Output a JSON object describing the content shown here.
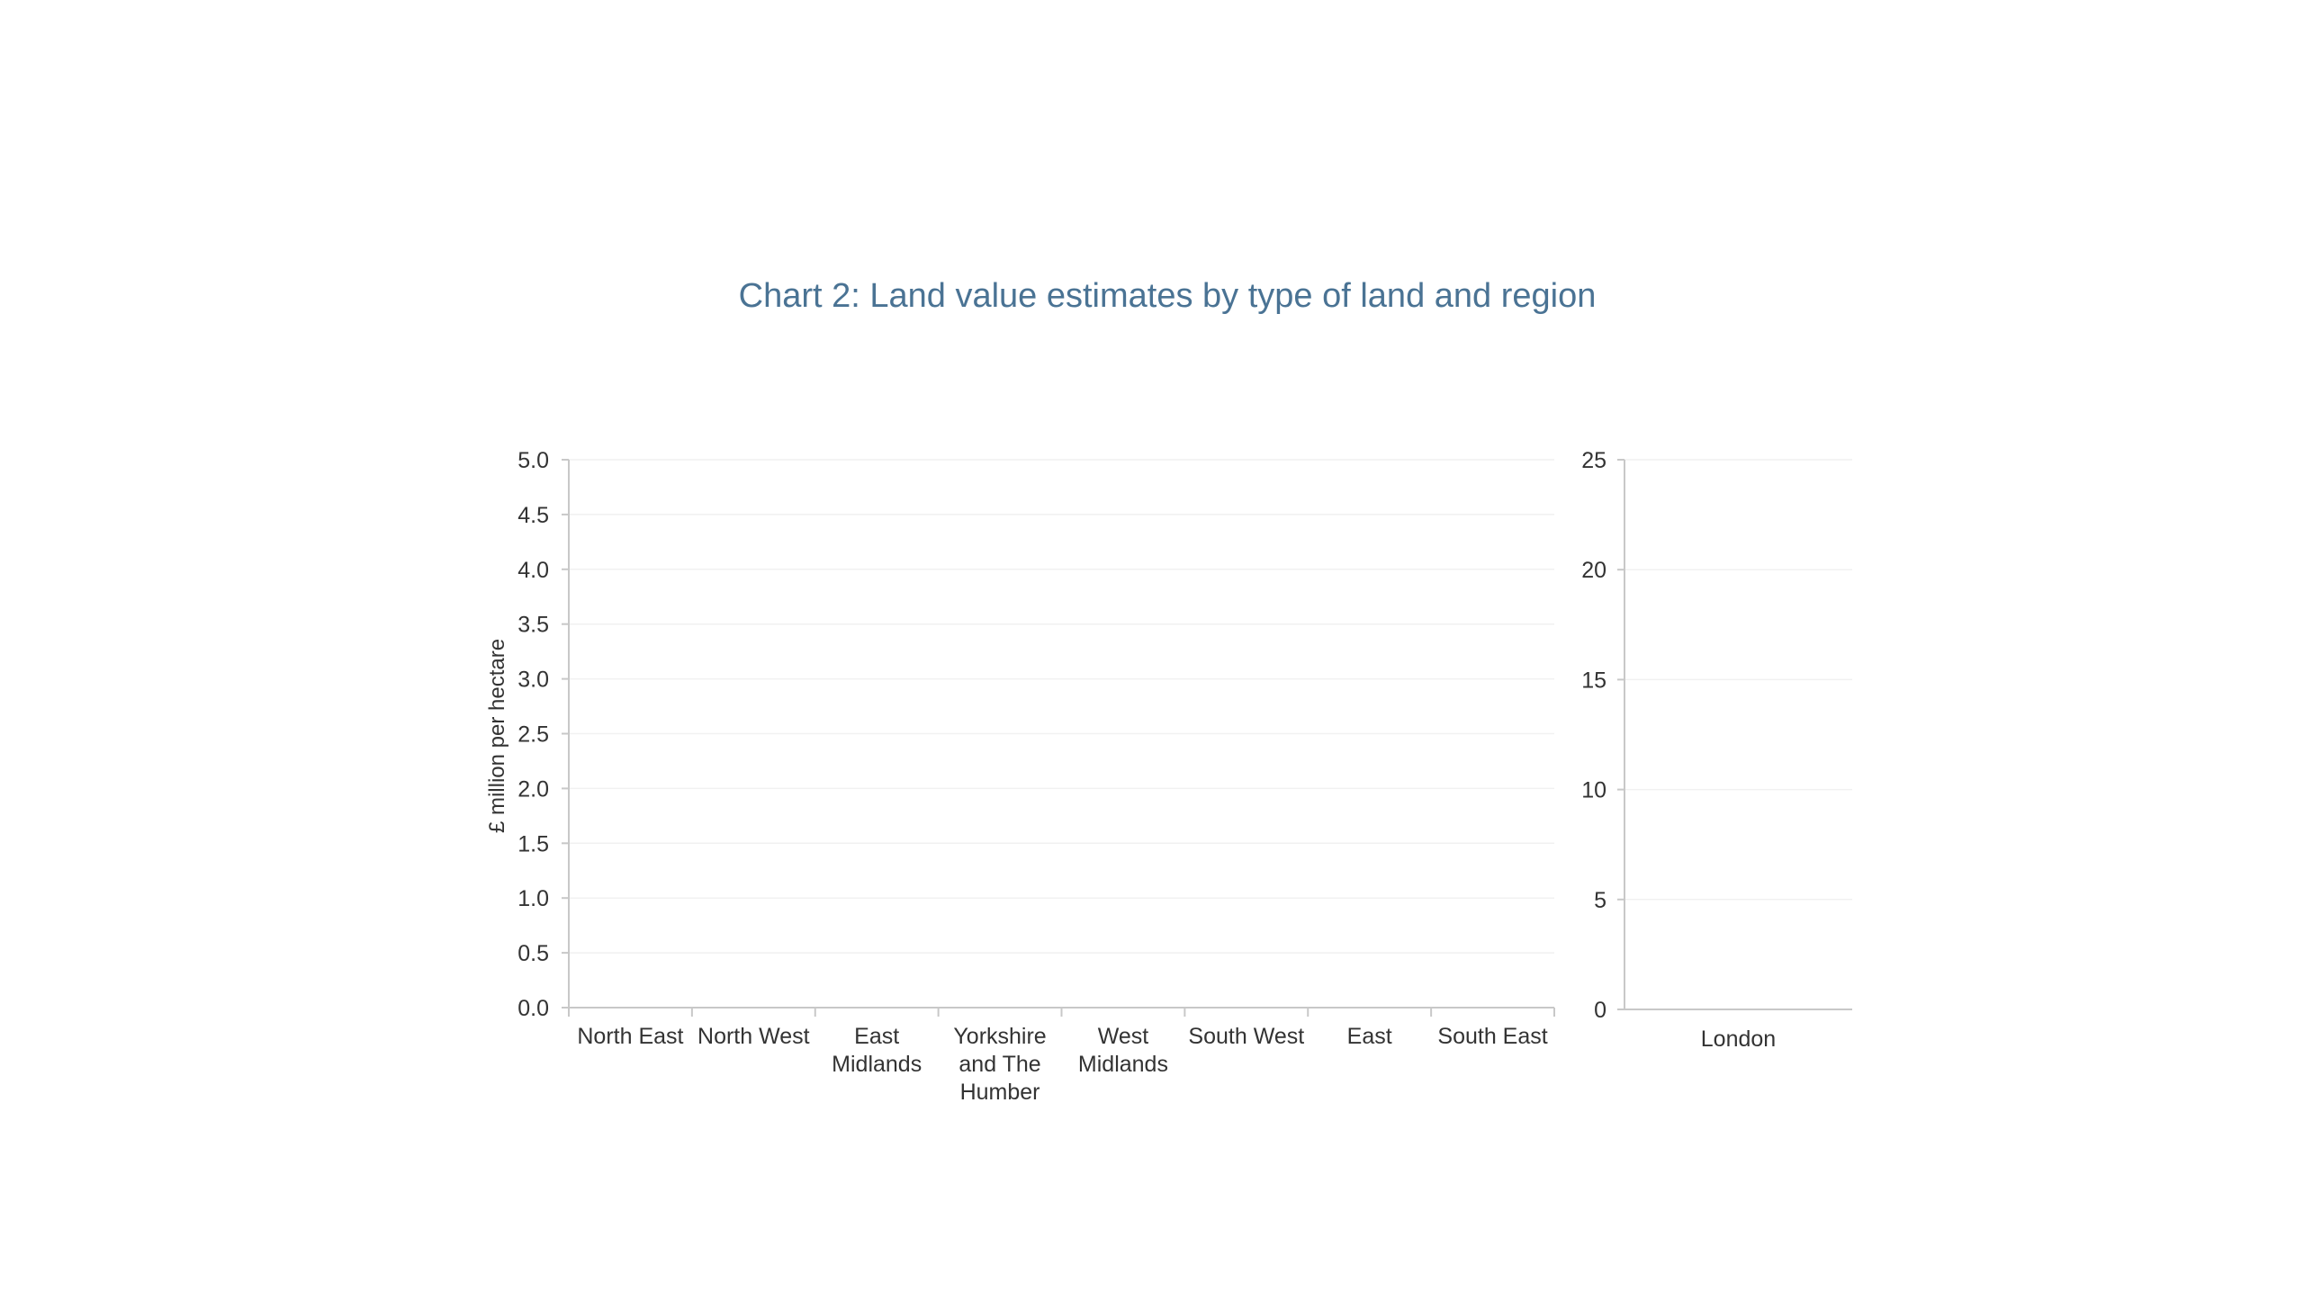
{
  "chart_data": {
    "title": "Chart 2: Land value estimates by type of land and region",
    "panels": [
      {
        "type": "bar",
        "categories": [
          "North East",
          "North West",
          "East Midlands",
          "Yorkshire and The Humber",
          "West Midlands",
          "South West",
          "East",
          "South East"
        ],
        "category_lines": [
          [
            "North East"
          ],
          [
            "North West"
          ],
          [
            "East",
            "Midlands"
          ],
          [
            "Yorkshire",
            "and The",
            "Humber"
          ],
          [
            "West",
            "Midlands"
          ],
          [
            "South West"
          ],
          [
            "East"
          ],
          [
            "South East"
          ]
        ],
        "series": [],
        "ylabel": "£ million per hectare",
        "ylim": [
          0,
          5
        ],
        "yticks": [
          "0.0",
          "0.5",
          "1.0",
          "1.5",
          "2.0",
          "2.5",
          "3.0",
          "3.5",
          "4.0",
          "4.5",
          "5.0"
        ],
        "grid": true
      },
      {
        "type": "bar",
        "categories": [
          "London"
        ],
        "category_lines": [
          [
            "London"
          ]
        ],
        "series": [],
        "ylabel": "",
        "ylim": [
          0,
          25
        ],
        "yticks": [
          "0",
          "5",
          "10",
          "15",
          "20",
          "25"
        ],
        "grid": true
      }
    ]
  }
}
